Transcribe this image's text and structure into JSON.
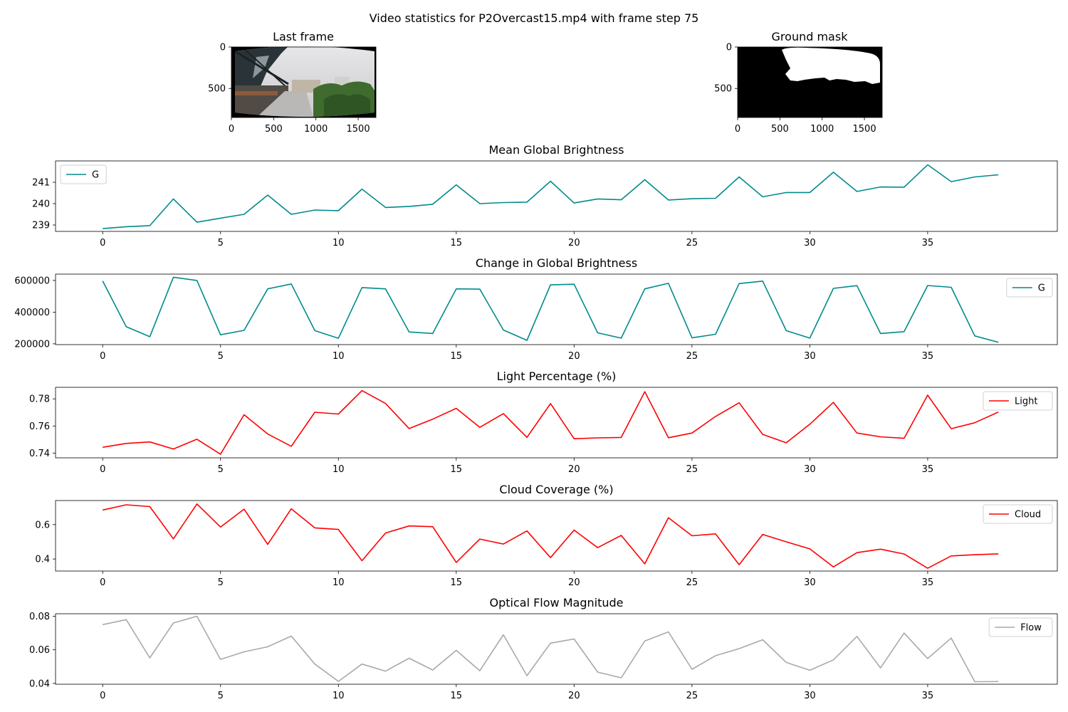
{
  "figure_title": "Video statistics for P2Overcast15.mp4 with frame step 75",
  "images": [
    {
      "title": "Last frame",
      "xticks": [
        0,
        500,
        1000,
        1500
      ],
      "yticks": [
        0,
        500
      ],
      "width": 1710,
      "height": 850
    },
    {
      "title": "Ground mask",
      "xticks": [
        0,
        500,
        1000,
        1500
      ],
      "yticks": [
        0,
        500
      ],
      "width": 1710,
      "height": 850
    }
  ],
  "chart_data": [
    {
      "type": "line",
      "title": "Mean Global Brightness",
      "xlim": [
        -2,
        40.5
      ],
      "ylim": [
        238.7,
        242.0
      ],
      "xticks": [
        0,
        5,
        10,
        15,
        20,
        25,
        30,
        35
      ],
      "yticks": [
        239,
        240,
        241
      ],
      "ytick_labels": [
        "239",
        "240",
        "241"
      ],
      "legend_loc": "upper-left",
      "series": [
        {
          "name": "G",
          "color": "#008b8b",
          "values": [
            238.83,
            238.92,
            238.97,
            240.22,
            239.13,
            239.32,
            239.5,
            240.4,
            239.5,
            239.7,
            239.67,
            240.68,
            239.82,
            239.87,
            239.97,
            240.88,
            240.0,
            240.05,
            240.07,
            241.05,
            240.03,
            240.22,
            240.18,
            241.12,
            240.17,
            240.23,
            240.25,
            241.25,
            240.32,
            240.52,
            240.52,
            241.47,
            240.57,
            240.78,
            240.77,
            241.82,
            241.03,
            241.25,
            241.35
          ]
        }
      ]
    },
    {
      "type": "line",
      "title": "Change in Global Brightness",
      "xlim": [
        -2,
        40.5
      ],
      "ylim": [
        195000,
        640000
      ],
      "xticks": [
        0,
        5,
        10,
        15,
        20,
        25,
        30,
        35
      ],
      "yticks": [
        200000,
        400000,
        600000
      ],
      "ytick_labels": [
        "200000",
        "400000",
        "600000"
      ],
      "legend_loc": "upper-right",
      "series": [
        {
          "name": "G",
          "color": "#008b8b",
          "values": [
            597000,
            308000,
            245000,
            620000,
            600000,
            257000,
            285000,
            547000,
            578000,
            283000,
            235000,
            555000,
            547000,
            275000,
            265000,
            547000,
            545000,
            287000,
            222000,
            572000,
            576000,
            269000,
            236000,
            547000,
            582000,
            238000,
            260000,
            580000,
            596000,
            283000,
            236000,
            550000,
            567000,
            265000,
            277000,
            568000,
            557000,
            250000,
            210000
          ]
        }
      ]
    },
    {
      "type": "line",
      "title": "Light Percentage (%)",
      "xlim": [
        -2,
        40.5
      ],
      "ylim": [
        0.7365,
        0.7885
      ],
      "xticks": [
        0,
        5,
        10,
        15,
        20,
        25,
        30,
        35
      ],
      "yticks": [
        0.74,
        0.76,
        0.78
      ],
      "ytick_labels": [
        "0.74",
        "0.76",
        "0.78"
      ],
      "legend_loc": "upper-right",
      "series": [
        {
          "name": "Light",
          "color": "#ff0000",
          "values": [
            0.7443,
            0.7471,
            0.7482,
            0.743,
            0.7502,
            0.7392,
            0.7683,
            0.7541,
            0.745,
            0.7701,
            0.7688,
            0.7861,
            0.7766,
            0.7581,
            0.765,
            0.773,
            0.759,
            0.7691,
            0.7516,
            0.7765,
            0.7506,
            0.7512,
            0.7515,
            0.7853,
            0.7513,
            0.7548,
            0.767,
            0.7771,
            0.7538,
            0.7476,
            0.7613,
            0.7774,
            0.7548,
            0.752,
            0.7509,
            0.7827,
            0.758,
            0.7624,
            0.7703
          ]
        }
      ]
    },
    {
      "type": "line",
      "title": "Cloud Coverage (%)",
      "xlim": [
        -2,
        40.5
      ],
      "ylim": [
        0.33,
        0.74
      ],
      "xticks": [
        0,
        5,
        10,
        15,
        20,
        25,
        30,
        35
      ],
      "yticks": [
        0.4,
        0.6
      ],
      "ytick_labels": [
        "0.4",
        "0.6"
      ],
      "legend_loc": "upper-right",
      "series": [
        {
          "name": "Cloud",
          "color": "#ff0000",
          "values": [
            0.685,
            0.715,
            0.705,
            0.517,
            0.72,
            0.586,
            0.69,
            0.485,
            0.692,
            0.581,
            0.572,
            0.39,
            0.551,
            0.592,
            0.588,
            0.38,
            0.516,
            0.487,
            0.563,
            0.408,
            0.568,
            0.466,
            0.537,
            0.372,
            0.64,
            0.535,
            0.546,
            0.367,
            0.543,
            0.5,
            0.459,
            0.354,
            0.437,
            0.457,
            0.429,
            0.346,
            0.418,
            0.425,
            0.43
          ]
        }
      ]
    },
    {
      "type": "line",
      "title": "Optical Flow Magnitude",
      "xlim": [
        -2,
        40.5
      ],
      "ylim": [
        0.0395,
        0.0815
      ],
      "xticks": [
        0,
        5,
        10,
        15,
        20,
        25,
        30,
        35
      ],
      "yticks": [
        0.04,
        0.06,
        0.08
      ],
      "ytick_labels": [
        "0.04",
        "0.06",
        "0.08"
      ],
      "legend_loc": "upper-right",
      "series": [
        {
          "name": "Flow",
          "color": "#a9a9a9",
          "values": [
            0.075,
            0.078,
            0.0552,
            0.076,
            0.08,
            0.0543,
            0.0588,
            0.0618,
            0.0682,
            0.0515,
            0.0412,
            0.0515,
            0.0473,
            0.055,
            0.048,
            0.0597,
            0.0475,
            0.069,
            0.0446,
            0.064,
            0.0665,
            0.0467,
            0.0433,
            0.0653,
            0.0707,
            0.0484,
            0.0565,
            0.0607,
            0.066,
            0.0525,
            0.0478,
            0.054,
            0.068,
            0.0492,
            0.07,
            0.0548,
            0.067,
            0.041,
            0.0411
          ]
        }
      ]
    }
  ]
}
